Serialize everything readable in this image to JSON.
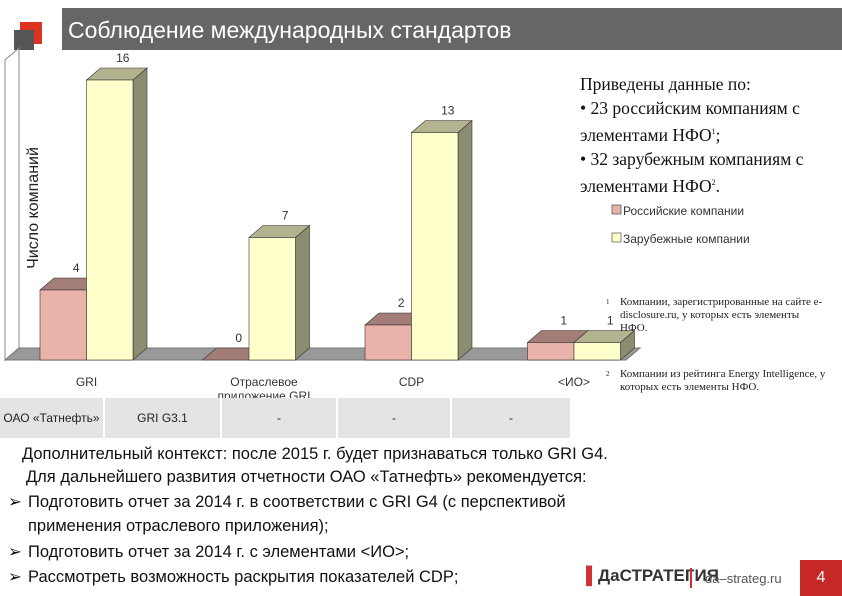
{
  "chart_data": {
    "type": "bar3d",
    "title": "Соблюдение международных стандартов",
    "y_label": "Число компаний",
    "categories": [
      "GRI",
      "Отраслевое приложение GRI",
      "CDP",
      "<ИО>"
    ],
    "series": [
      {
        "name": "Российские компании",
        "color": "#e9b3aa",
        "values": [
          4,
          0,
          2,
          1
        ]
      },
      {
        "name": "Зарубежные компании",
        "color": "#ffffcc",
        "values": [
          16,
          7,
          13,
          1
        ]
      }
    ],
    "ylim": [
      0,
      16
    ]
  },
  "table": {
    "rows": [
      [
        "ОАО «Татнефть»",
        "GRI G3.1",
        "-",
        "-",
        "-"
      ]
    ]
  },
  "info": {
    "heading": "Приведены данные по:",
    "items": [
      {
        "text": "• 23 российским компаниям с элементами НФО",
        "sup": "1",
        "tail": ";"
      },
      {
        "text": "• 32 зарубежным компаниям с элементами НФО",
        "sup": "2",
        "tail": "."
      }
    ]
  },
  "footnotes": [
    {
      "mark": "1",
      "text": "Компании, зарегистрированные на сайте e-disclosure.ru, у которых есть элементы НФО."
    },
    {
      "mark": "2",
      "text": "Компании из рейтинга Energy Intelligence, у которых есть элементы НФО."
    }
  ],
  "body": {
    "context": "Дополнительный контекст: после 2015 г. будет признаваться только GRI G4.",
    "lead": "Для дальнейшего развития отчетности ОАО «Татнефть» рекомендуется:",
    "bullets": [
      "Подготовить отчет за 2014 г. в соответствии с GRI G4 (с перспективой применения отраслевого приложения);",
      "Подготовить отчет за 2014 г. с элементами <ИО>;",
      "Рассмотреть возможность раскрытия показателей CDP;"
    ]
  },
  "footer": {
    "logo": "ДаСТРАТЕГИЯ",
    "site": "da–strateg.ru",
    "page": "4"
  }
}
